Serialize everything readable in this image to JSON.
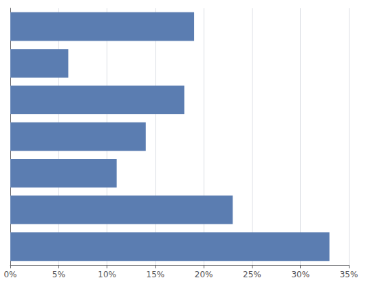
{
  "chart_data": {
    "type": "bar",
    "orientation": "horizontal",
    "categories": [
      null,
      null,
      null,
      null,
      null,
      null,
      null
    ],
    "values": [
      19,
      6,
      18,
      14,
      11,
      23,
      33
    ],
    "color": "#5b7db1",
    "xlim": [
      0,
      35
    ],
    "xticks": [
      {
        "value": 0,
        "label": "0%"
      },
      {
        "value": 5,
        "label": "5%"
      },
      {
        "value": 10,
        "label": "10%"
      },
      {
        "value": 15,
        "label": "15%"
      },
      {
        "value": 20,
        "label": "20%"
      },
      {
        "value": 25,
        "label": "25%"
      },
      {
        "value": 30,
        "label": "30%"
      },
      {
        "value": 35,
        "label": "35%"
      }
    ],
    "grid": true,
    "tick_labels": "x"
  }
}
